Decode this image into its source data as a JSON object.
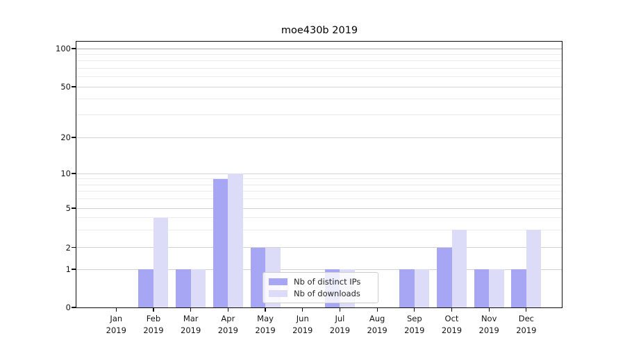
{
  "chart_data": {
    "type": "bar",
    "title": "moe430b 2019",
    "categories": [
      "Jan\n2019",
      "Feb\n2019",
      "Mar\n2019",
      "Apr\n2019",
      "May\n2019",
      "Jun\n2019",
      "Jul\n2019",
      "Aug\n2019",
      "Sep\n2019",
      "Oct\n2019",
      "Nov\n2019",
      "Dec\n2019"
    ],
    "series": [
      {
        "name": "Nb of distinct IPs",
        "color": "#a6a6f4",
        "values": [
          0,
          1,
          1,
          9,
          2,
          0,
          1,
          0,
          1,
          2,
          1,
          1
        ]
      },
      {
        "name": "Nb of downloads",
        "color": "#dcdcf8",
        "values": [
          0,
          4,
          1,
          10,
          2,
          0,
          1,
          0,
          1,
          3,
          1,
          3
        ]
      }
    ],
    "y_axis": {
      "scale": "log-like",
      "major_ticks": [
        0,
        1,
        2,
        5,
        10,
        20,
        50,
        100
      ],
      "minor_ticks": [
        3,
        4,
        6,
        7,
        8,
        9,
        30,
        40,
        60,
        70,
        80,
        90
      ],
      "ylim": [
        0,
        115
      ]
    },
    "xlabel": "",
    "ylabel": "",
    "grid": true,
    "legend_position": "lower center inside plot"
  },
  "colors": {
    "background": "#ffffff",
    "spine": "#0a0a0a",
    "grid_major": "#d2d2d2",
    "grid_minor": "#ececec",
    "grid_top": "#ababab",
    "text": "#141414"
  }
}
